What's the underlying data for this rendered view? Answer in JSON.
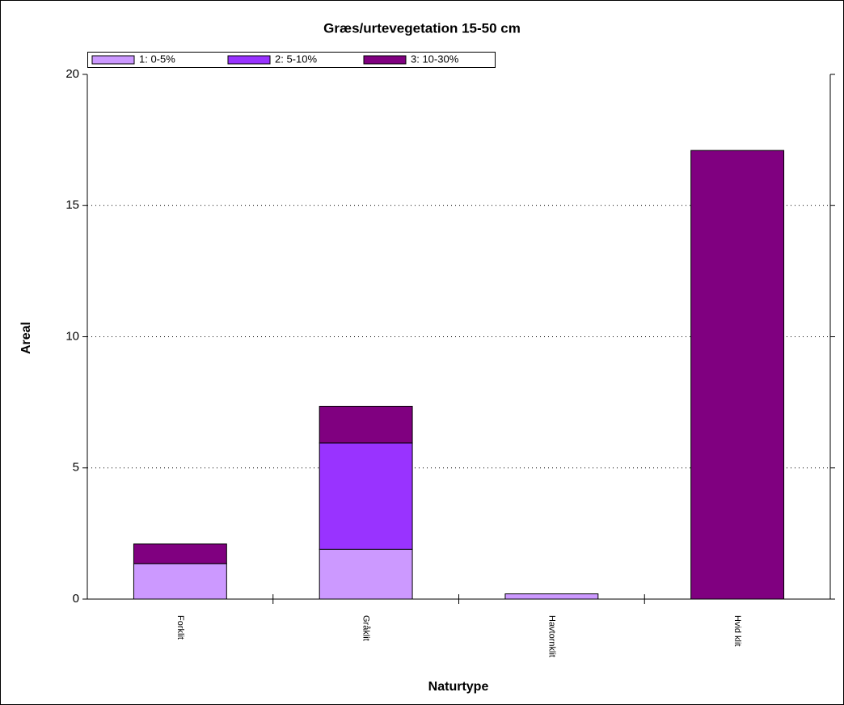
{
  "chart_data": {
    "type": "stacked_bar",
    "title": "Græs/urtevegetation 15-50 cm",
    "x_label": "Naturtype",
    "y_label": "Areal",
    "categories": [
      "Forklit",
      "Gråklit",
      "Havtornklit",
      "Hvid klit"
    ],
    "series": [
      {
        "name": "1: 0-5%",
        "color": "#cc99ff",
        "values": [
          1.35,
          1.9,
          0.2,
          0
        ]
      },
      {
        "name": "2: 5-10%",
        "color": "#9933ff",
        "values": [
          0,
          4.05,
          0,
          0
        ]
      },
      {
        "name": "3: 10-30%",
        "color": "#800080",
        "values": [
          0.75,
          1.4,
          0,
          17.1
        ]
      }
    ],
    "ylim": [
      0,
      20
    ],
    "yticks": [
      0,
      5,
      10,
      15,
      20
    ],
    "grid": true,
    "legend": "top-left"
  }
}
